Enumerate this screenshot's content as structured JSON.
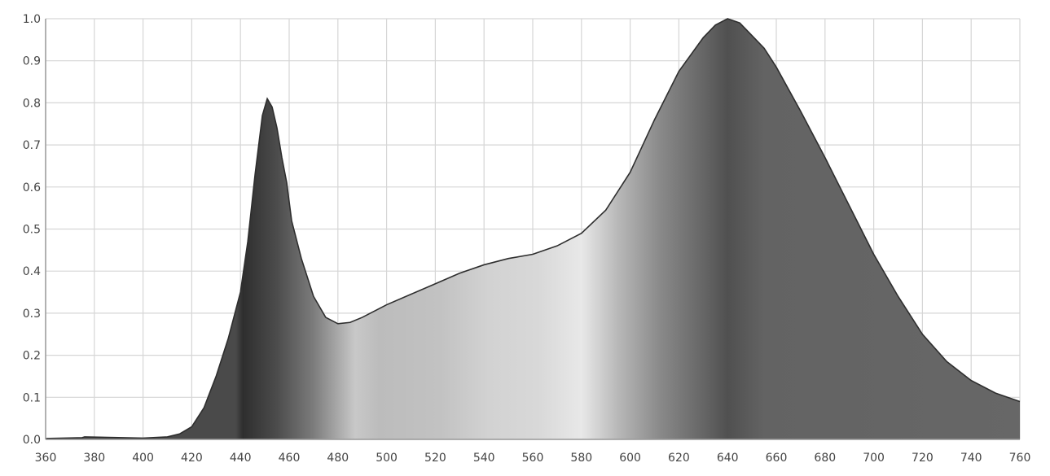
{
  "chart_data": {
    "type": "area",
    "title": "",
    "xlabel": "",
    "ylabel": "",
    "xlim": [
      360,
      760
    ],
    "ylim": [
      0,
      1.0
    ],
    "grid": true,
    "legend": "none",
    "x_ticks": [
      360,
      380,
      400,
      420,
      440,
      460,
      480,
      500,
      520,
      540,
      560,
      580,
      600,
      620,
      640,
      660,
      680,
      700,
      720,
      740,
      760
    ],
    "y_ticks": [
      "0.0",
      "0.1",
      "0.2",
      "0.3",
      "0.4",
      "0.5",
      "0.6",
      "0.7",
      "0.8",
      "0.9",
      "1.0"
    ],
    "x": [
      360,
      375,
      376,
      400,
      410,
      415,
      420,
      425,
      430,
      435,
      440,
      443,
      446,
      449,
      451,
      453,
      455,
      457,
      459,
      461,
      465,
      470,
      475,
      480,
      485,
      490,
      495,
      500,
      510,
      520,
      530,
      540,
      550,
      560,
      570,
      580,
      590,
      600,
      610,
      620,
      630,
      635,
      640,
      645,
      650,
      655,
      660,
      670,
      680,
      690,
      700,
      710,
      720,
      730,
      740,
      750,
      760
    ],
    "y": [
      0.002,
      0.004,
      0.006,
      0.003,
      0.006,
      0.013,
      0.03,
      0.075,
      0.15,
      0.24,
      0.35,
      0.47,
      0.63,
      0.77,
      0.81,
      0.79,
      0.74,
      0.67,
      0.61,
      0.52,
      0.43,
      0.34,
      0.29,
      0.275,
      0.278,
      0.29,
      0.305,
      0.32,
      0.345,
      0.37,
      0.395,
      0.415,
      0.43,
      0.44,
      0.46,
      0.49,
      0.545,
      0.635,
      0.76,
      0.875,
      0.955,
      0.985,
      1.0,
      0.99,
      0.96,
      0.93,
      0.885,
      0.78,
      0.67,
      0.555,
      0.44,
      0.34,
      0.25,
      0.185,
      0.14,
      0.11,
      0.09
    ],
    "colors": {
      "fill_stops": [
        {
          "wl": 360,
          "color": "#4a4a4a"
        },
        {
          "wl": 438,
          "color": "#4a4a4a"
        },
        {
          "wl": 441,
          "color": "#2e2e2e"
        },
        {
          "wl": 455,
          "color": "#4c4c4c"
        },
        {
          "wl": 470,
          "color": "#7c7c7c"
        },
        {
          "wl": 487,
          "color": "#c8c8c8"
        },
        {
          "wl": 497,
          "color": "#bcbcbc"
        },
        {
          "wl": 522,
          "color": "#c2c2c2"
        },
        {
          "wl": 542,
          "color": "#d2d2d2"
        },
        {
          "wl": 562,
          "color": "#d8d8d8"
        },
        {
          "wl": 580,
          "color": "#e8e8e8"
        },
        {
          "wl": 595,
          "color": "#b8b8b8"
        },
        {
          "wl": 612,
          "color": "#8a8a8a"
        },
        {
          "wl": 630,
          "color": "#666666"
        },
        {
          "wl": 640,
          "color": "#505050"
        },
        {
          "wl": 655,
          "color": "#636363"
        },
        {
          "wl": 760,
          "color": "#676767"
        }
      ],
      "line": "#2e2e2e",
      "grid": "#d6d6d6",
      "axis": "#9a9a9a",
      "label": "#444444"
    }
  }
}
